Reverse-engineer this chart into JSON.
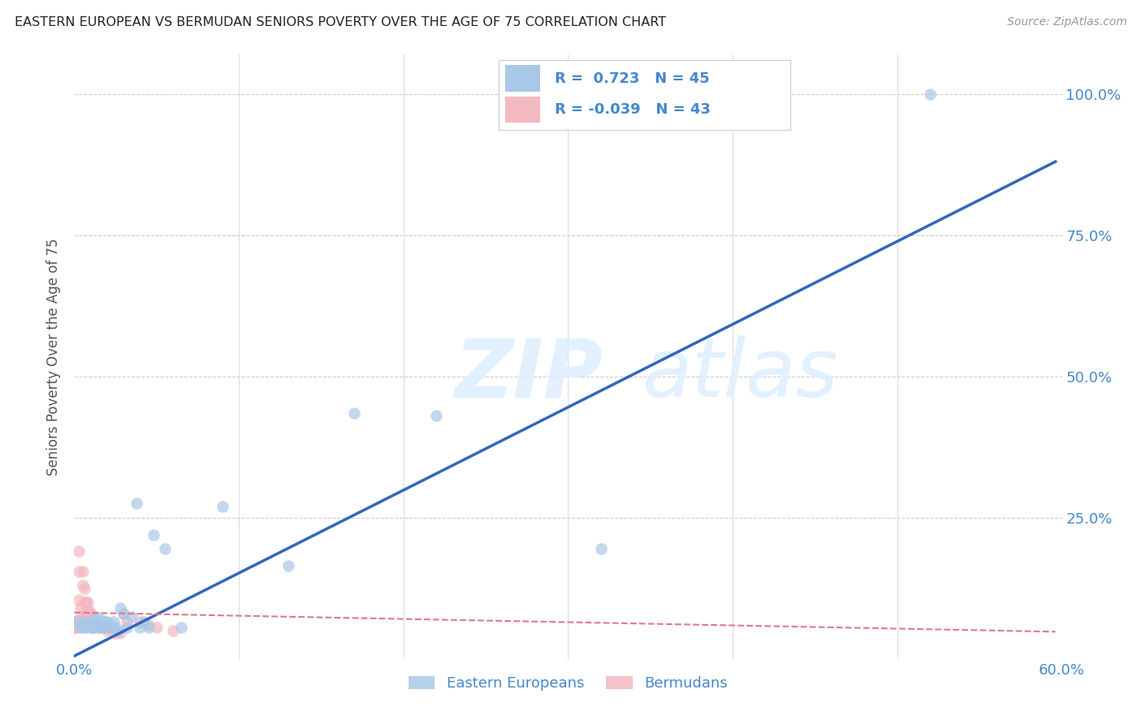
{
  "title": "EASTERN EUROPEAN VS BERMUDAN SENIORS POVERTY OVER THE AGE OF 75 CORRELATION CHART",
  "source": "Source: ZipAtlas.com",
  "ylabel": "Seniors Poverty Over the Age of 75",
  "xlim": [
    0.0,
    0.6
  ],
  "ylim": [
    0.0,
    1.07
  ],
  "xtick_positions": [
    0.0,
    0.1,
    0.2,
    0.3,
    0.4,
    0.5,
    0.6
  ],
  "xtick_labels": [
    "0.0%",
    "",
    "",
    "",
    "",
    "",
    "60.0%"
  ],
  "ytick_positions": [
    0.0,
    0.25,
    0.5,
    0.75,
    1.0
  ],
  "ytick_labels": [
    "",
    "25.0%",
    "50.0%",
    "75.0%",
    "100.0%"
  ],
  "background_color": "#ffffff",
  "grid_color": "#cccccc",
  "blue_color": "#a8c8e8",
  "pink_color": "#f4b8c0",
  "blue_line_color": "#3366bb",
  "pink_line_color": "#e07888",
  "axis_label_color": "#4488cc",
  "legend_text_color": "#4488cc",
  "watermark_color": "#ddeeff",
  "watermark": "ZIPatlas",
  "legend_r_blue": "0.723",
  "legend_n_blue": "45",
  "legend_r_pink": "-0.039",
  "legend_n_pink": "43",
  "blue_scatter_x": [
    0.003,
    0.004,
    0.005,
    0.005,
    0.006,
    0.007,
    0.008,
    0.009,
    0.01,
    0.01,
    0.011,
    0.012,
    0.013,
    0.013,
    0.014,
    0.015,
    0.015,
    0.016,
    0.017,
    0.018,
    0.019,
    0.02,
    0.021,
    0.022,
    0.023,
    0.024,
    0.025,
    0.027,
    0.028,
    0.03,
    0.032,
    0.035,
    0.038,
    0.04,
    0.042,
    0.045,
    0.048,
    0.055,
    0.065,
    0.09,
    0.13,
    0.17,
    0.22,
    0.32,
    0.52
  ],
  "blue_scatter_y": [
    0.065,
    0.055,
    0.065,
    0.055,
    0.06,
    0.055,
    0.06,
    0.065,
    0.06,
    0.055,
    0.055,
    0.055,
    0.065,
    0.075,
    0.06,
    0.06,
    0.055,
    0.07,
    0.055,
    0.065,
    0.055,
    0.065,
    0.055,
    0.06,
    0.055,
    0.065,
    0.055,
    0.05,
    0.09,
    0.08,
    0.055,
    0.075,
    0.275,
    0.055,
    0.065,
    0.055,
    0.22,
    0.195,
    0.055,
    0.27,
    0.165,
    0.435,
    0.43,
    0.195,
    1.0
  ],
  "pink_scatter_x": [
    0.0,
    0.0,
    0.0,
    0.001,
    0.001,
    0.002,
    0.002,
    0.003,
    0.003,
    0.003,
    0.004,
    0.004,
    0.004,
    0.005,
    0.005,
    0.005,
    0.006,
    0.006,
    0.007,
    0.007,
    0.008,
    0.008,
    0.009,
    0.009,
    0.01,
    0.01,
    0.011,
    0.012,
    0.013,
    0.014,
    0.015,
    0.017,
    0.018,
    0.02,
    0.022,
    0.025,
    0.028,
    0.03,
    0.032,
    0.04,
    0.045,
    0.05,
    0.06
  ],
  "pink_scatter_y": [
    0.065,
    0.06,
    0.055,
    0.065,
    0.055,
    0.065,
    0.055,
    0.19,
    0.155,
    0.105,
    0.09,
    0.075,
    0.065,
    0.155,
    0.13,
    0.075,
    0.125,
    0.1,
    0.1,
    0.085,
    0.1,
    0.075,
    0.085,
    0.065,
    0.08,
    0.065,
    0.065,
    0.065,
    0.06,
    0.06,
    0.055,
    0.055,
    0.055,
    0.05,
    0.055,
    0.045,
    0.045,
    0.08,
    0.065,
    0.065,
    0.06,
    0.055,
    0.05
  ],
  "blue_line_x": [
    0.0,
    0.596
  ],
  "blue_line_y": [
    0.005,
    0.88
  ],
  "pink_line_x": [
    0.0,
    0.596
  ],
  "pink_line_y": [
    0.082,
    0.048
  ]
}
